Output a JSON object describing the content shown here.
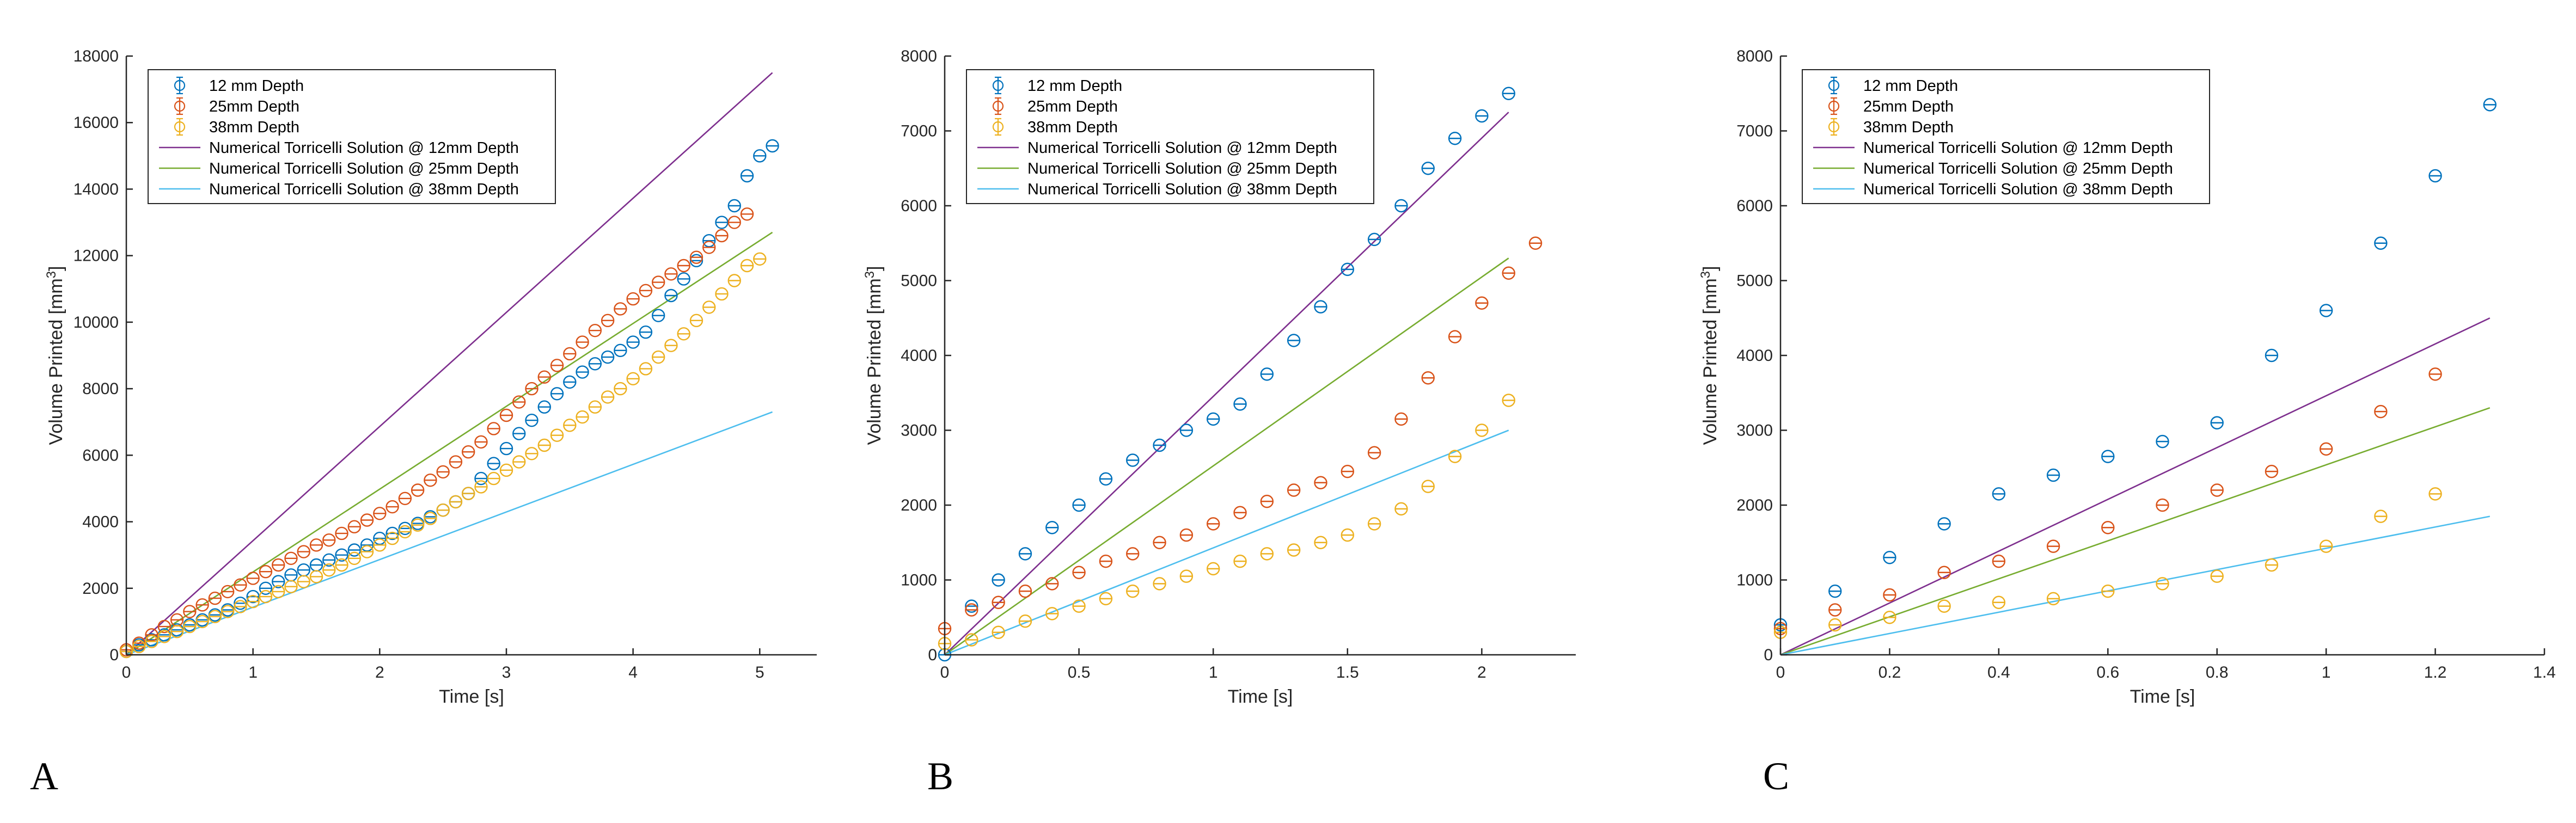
{
  "colors": {
    "blue": "#0072BD",
    "red": "#D95319",
    "yellow": "#EDB120",
    "purple": "#7E2F8E",
    "green": "#77AC30",
    "cyan": "#4DBEEE",
    "axis": "#262626"
  },
  "chart_data": [
    {
      "type": "scatter",
      "panel_label": "A",
      "xlabel": "Time [s]",
      "ylabel": "Volume Printed [mm",
      "ylabel_sup": "3",
      "ylabel_end": "]",
      "xlim": [
        0,
        5.45
      ],
      "ylim": [
        0,
        18000
      ],
      "xticks": [
        0,
        1,
        2,
        3,
        4,
        5
      ],
      "yticks": [
        0,
        2000,
        4000,
        6000,
        8000,
        10000,
        12000,
        14000,
        16000,
        18000
      ],
      "legend": "top-left",
      "series": [
        {
          "name": "12 mm Depth",
          "color": "blue",
          "kind": "errorbar",
          "x": [
            0,
            0.1,
            0.2,
            0.3,
            0.4,
            0.5,
            0.6,
            0.7,
            0.8,
            0.9,
            1.0,
            1.1,
            1.2,
            1.3,
            1.4,
            1.5,
            1.6,
            1.7,
            1.8,
            1.9,
            2.0,
            2.1,
            2.2,
            2.3,
            2.4,
            2.5,
            2.6,
            2.7,
            2.8,
            2.9,
            3.0,
            3.1,
            3.2,
            3.3,
            3.4,
            3.5,
            3.6,
            3.7,
            3.8,
            3.9,
            4.0,
            4.1,
            4.2,
            4.3,
            4.4,
            4.5,
            4.6,
            4.7,
            4.8,
            4.9,
            5.0,
            5.1
          ],
          "y": [
            100,
            300,
            450,
            600,
            750,
            900,
            1050,
            1200,
            1350,
            1550,
            1750,
            2000,
            2200,
            2400,
            2550,
            2700,
            2850,
            3000,
            3150,
            3300,
            3500,
            3650,
            3800,
            3950,
            4150,
            4350,
            4600,
            4850,
            5300,
            5750,
            6200,
            6650,
            7050,
            7450,
            7850,
            8200,
            8500,
            8750,
            8950,
            9150,
            9400,
            9700,
            10200,
            10800,
            11300,
            11850,
            12450,
            13000,
            13500,
            14400,
            15000,
            15300
          ]
        },
        {
          "name": "25mm Depth",
          "color": "red",
          "kind": "errorbar",
          "x": [
            0,
            0.1,
            0.2,
            0.3,
            0.4,
            0.5,
            0.6,
            0.7,
            0.8,
            0.9,
            1.0,
            1.1,
            1.2,
            1.3,
            1.4,
            1.5,
            1.6,
            1.7,
            1.8,
            1.9,
            2.0,
            2.1,
            2.2,
            2.3,
            2.4,
            2.5,
            2.6,
            2.7,
            2.8,
            2.9,
            3.0,
            3.1,
            3.2,
            3.3,
            3.4,
            3.5,
            3.6,
            3.7,
            3.8,
            3.9,
            4.0,
            4.1,
            4.2,
            4.3,
            4.4,
            4.5,
            4.6,
            4.7,
            4.8,
            4.9
          ],
          "y": [
            150,
            350,
            600,
            850,
            1050,
            1300,
            1500,
            1700,
            1900,
            2100,
            2300,
            2500,
            2700,
            2900,
            3100,
            3300,
            3450,
            3650,
            3850,
            4050,
            4250,
            4450,
            4700,
            4950,
            5250,
            5500,
            5800,
            6100,
            6400,
            6800,
            7200,
            7600,
            8000,
            8350,
            8700,
            9050,
            9400,
            9750,
            10050,
            10400,
            10700,
            10950,
            11200,
            11450,
            11700,
            11950,
            12250,
            12600,
            13000,
            13250
          ]
        },
        {
          "name": "38mm Depth",
          "color": "yellow",
          "kind": "errorbar",
          "x": [
            0,
            0.1,
            0.2,
            0.3,
            0.4,
            0.5,
            0.6,
            0.7,
            0.8,
            0.9,
            1.0,
            1.1,
            1.2,
            1.3,
            1.4,
            1.5,
            1.6,
            1.7,
            1.8,
            1.9,
            2.0,
            2.1,
            2.2,
            2.3,
            2.4,
            2.5,
            2.6,
            2.7,
            2.8,
            2.9,
            3.0,
            3.1,
            3.2,
            3.3,
            3.4,
            3.5,
            3.6,
            3.7,
            3.8,
            3.9,
            4.0,
            4.1,
            4.2,
            4.3,
            4.4,
            4.5,
            4.6,
            4.7,
            4.8,
            4.9,
            5.0
          ],
          "y": [
            100,
            250,
            400,
            550,
            700,
            850,
            1000,
            1150,
            1300,
            1450,
            1600,
            1750,
            1900,
            2050,
            2200,
            2350,
            2550,
            2700,
            2900,
            3100,
            3300,
            3500,
            3700,
            3900,
            4100,
            4350,
            4600,
            4850,
            5050,
            5300,
            5550,
            5800,
            6050,
            6300,
            6600,
            6900,
            7150,
            7450,
            7750,
            8000,
            8300,
            8600,
            8950,
            9300,
            9650,
            10050,
            10450,
            10850,
            11250,
            11700,
            11900
          ]
        },
        {
          "name": "Numerical Torricelli Solution @ 12mm Depth",
          "color": "purple",
          "kind": "line",
          "x": [
            0,
            5.1
          ],
          "y": [
            0,
            17500
          ]
        },
        {
          "name": "Numerical Torricelli Solution @ 25mm Depth",
          "color": "green",
          "kind": "line",
          "x": [
            0,
            5.1
          ],
          "y": [
            0,
            12700
          ]
        },
        {
          "name": "Numerical Torricelli Solution @ 38mm Depth",
          "color": "cyan",
          "kind": "line",
          "x": [
            0,
            5.1
          ],
          "y": [
            0,
            7300
          ]
        }
      ]
    },
    {
      "type": "scatter",
      "panel_label": "B",
      "xlabel": "Time [s]",
      "ylabel": "Volume Printed [mm",
      "ylabel_sup": "3",
      "ylabel_end": "]",
      "xlim": [
        0,
        2.35
      ],
      "ylim": [
        0,
        8000
      ],
      "xticks": [
        0,
        0.5,
        1,
        1.5,
        2
      ],
      "yticks": [
        0,
        1000,
        2000,
        3000,
        4000,
        5000,
        6000,
        7000,
        8000
      ],
      "legend": "top-left",
      "series": [
        {
          "name": "12 mm Depth",
          "color": "blue",
          "kind": "errorbar",
          "x": [
            0,
            0.1,
            0.2,
            0.3,
            0.4,
            0.5,
            0.6,
            0.7,
            0.8,
            0.9,
            1.0,
            1.1,
            1.2,
            1.3,
            1.4,
            1.5,
            1.6,
            1.7,
            1.8,
            1.9,
            2.0,
            2.1
          ],
          "y": [
            0,
            650,
            1000,
            1350,
            1700,
            2000,
            2350,
            2600,
            2800,
            3000,
            3150,
            3350,
            3750,
            4200,
            4650,
            5150,
            5550,
            6000,
            6500,
            6900,
            7200,
            7500
          ]
        },
        {
          "name": "25mm Depth",
          "color": "red",
          "kind": "errorbar",
          "x": [
            0,
            0.1,
            0.2,
            0.3,
            0.4,
            0.5,
            0.6,
            0.7,
            0.8,
            0.9,
            1.0,
            1.1,
            1.2,
            1.3,
            1.4,
            1.5,
            1.6,
            1.7,
            1.8,
            1.9,
            2.0,
            2.1,
            2.2
          ],
          "y": [
            350,
            600,
            700,
            850,
            950,
            1100,
            1250,
            1350,
            1500,
            1600,
            1750,
            1900,
            2050,
            2200,
            2300,
            2450,
            2700,
            3150,
            3700,
            4250,
            4700,
            5100,
            5500
          ]
        },
        {
          "name": "38mm Depth",
          "color": "yellow",
          "kind": "errorbar",
          "x": [
            0,
            0.1,
            0.2,
            0.3,
            0.4,
            0.5,
            0.6,
            0.7,
            0.8,
            0.9,
            1.0,
            1.1,
            1.2,
            1.3,
            1.4,
            1.5,
            1.6,
            1.7,
            1.8,
            1.9,
            2.0,
            2.1
          ],
          "y": [
            150,
            200,
            300,
            450,
            550,
            650,
            750,
            850,
            950,
            1050,
            1150,
            1250,
            1350,
            1400,
            1500,
            1600,
            1750,
            1950,
            2250,
            2650,
            3000,
            3400
          ]
        },
        {
          "name": "Numerical Torricelli Solution @ 12mm Depth",
          "color": "purple",
          "kind": "line",
          "x": [
            0,
            2.1
          ],
          "y": [
            0,
            7250
          ]
        },
        {
          "name": "Numerical Torricelli Solution @ 25mm Depth",
          "color": "green",
          "kind": "line",
          "x": [
            0,
            2.1
          ],
          "y": [
            0,
            5300
          ]
        },
        {
          "name": "Numerical Torricelli Solution @ 38mm Depth",
          "color": "cyan",
          "kind": "line",
          "x": [
            0,
            2.1
          ],
          "y": [
            0,
            3000
          ]
        }
      ]
    },
    {
      "type": "scatter",
      "panel_label": "C",
      "xlabel": "Time [s]",
      "ylabel": "Volume Printed [mm",
      "ylabel_sup": "3",
      "ylabel_end": "]",
      "xlim": [
        0,
        1.4
      ],
      "ylim": [
        0,
        8000
      ],
      "xticks": [
        0,
        0.2,
        0.4,
        0.6,
        0.8,
        1,
        1.2,
        1.4
      ],
      "yticks": [
        0,
        1000,
        2000,
        3000,
        4000,
        5000,
        6000,
        7000,
        8000
      ],
      "legend": "top-left",
      "series": [
        {
          "name": "12 mm Depth",
          "color": "blue",
          "kind": "errorbar",
          "x": [
            0,
            0.1,
            0.2,
            0.3,
            0.4,
            0.5,
            0.6,
            0.7,
            0.8,
            0.9,
            1.0,
            1.1,
            1.2,
            1.3
          ],
          "y": [
            400,
            850,
            1300,
            1750,
            2150,
            2400,
            2650,
            2850,
            3100,
            4000,
            4600,
            5500,
            6400,
            7350
          ]
        },
        {
          "name": "25mm Depth",
          "color": "red",
          "kind": "errorbar",
          "x": [
            0,
            0.1,
            0.2,
            0.3,
            0.4,
            0.5,
            0.6,
            0.7,
            0.8,
            0.9,
            1.0,
            1.1,
            1.2
          ],
          "y": [
            350,
            600,
            800,
            1100,
            1250,
            1450,
            1700,
            2000,
            2200,
            2450,
            2750,
            3250,
            3750
          ]
        },
        {
          "name": "38mm Depth",
          "color": "yellow",
          "kind": "errorbar",
          "x": [
            0,
            0.1,
            0.2,
            0.3,
            0.4,
            0.5,
            0.6,
            0.7,
            0.8,
            0.9,
            1.0,
            1.1,
            1.2
          ],
          "y": [
            300,
            400,
            500,
            650,
            700,
            750,
            850,
            950,
            1050,
            1200,
            1450,
            1850,
            2150
          ]
        },
        {
          "name": "Numerical Torricelli Solution @ 12mm Depth",
          "color": "purple",
          "kind": "line",
          "x": [
            0,
            1.3
          ],
          "y": [
            0,
            4500
          ]
        },
        {
          "name": "Numerical Torricelli Solution @ 25mm Depth",
          "color": "green",
          "kind": "line",
          "x": [
            0,
            1.3
          ],
          "y": [
            0,
            3300
          ]
        },
        {
          "name": "Numerical Torricelli Solution @ 38mm Depth",
          "color": "cyan",
          "kind": "line",
          "x": [
            0,
            1.3
          ],
          "y": [
            0,
            1850
          ]
        }
      ]
    }
  ]
}
